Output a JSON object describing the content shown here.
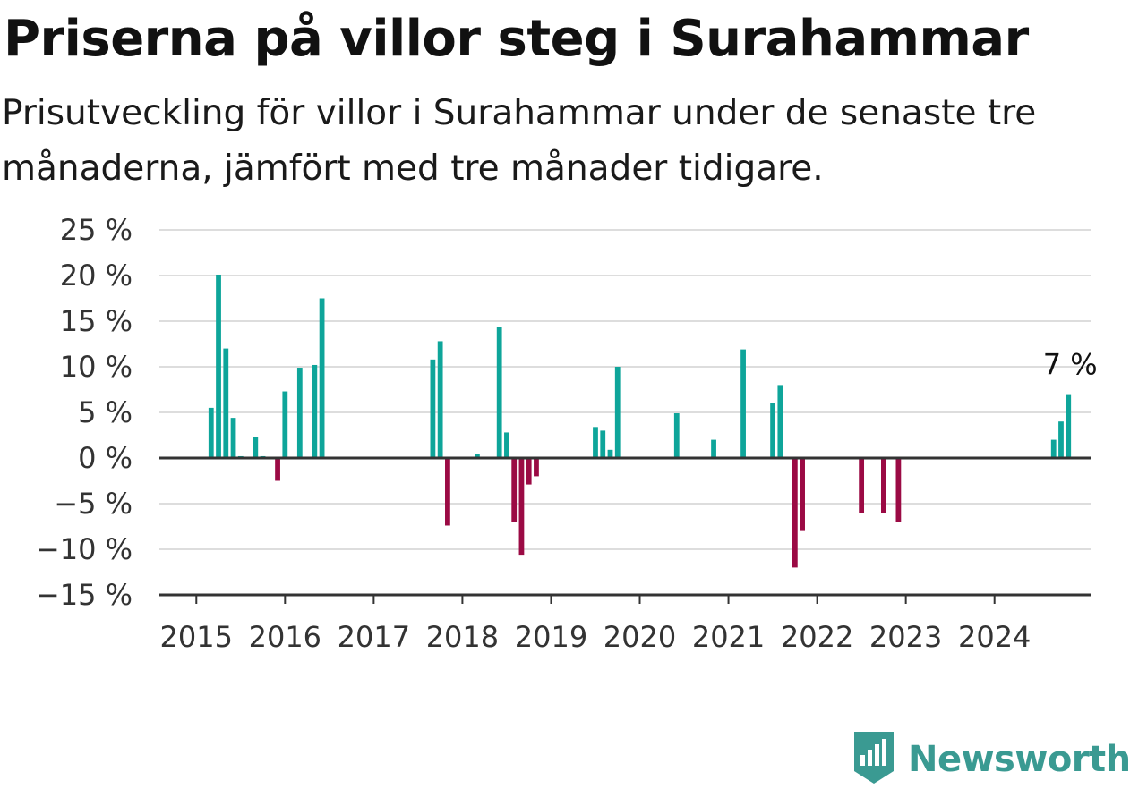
{
  "title": "Priserna på villor steg i Surahammar",
  "subtitle": "Prisutveckling för villor i Surahammar under de senaste tre månaderna, jämfört med tre månader tidigare.",
  "brand": {
    "name": "Newsworthy",
    "icon": "newsworthy-logo-icon",
    "color": "#3a9a92"
  },
  "chart_data": {
    "type": "bar",
    "xlabel": "",
    "ylabel": "",
    "ylim": [
      -15,
      25
    ],
    "yticks": [
      25,
      20,
      15,
      10,
      5,
      0,
      -5,
      -10,
      -15
    ],
    "ytick_labels": [
      "25 %",
      "20 %",
      "15 %",
      "10 %",
      "5 %",
      "0 %",
      "−5 %",
      "−10 %",
      "−15 %"
    ],
    "xticks": [
      "2015",
      "2016",
      "2017",
      "2018",
      "2019",
      "2020",
      "2021",
      "2022",
      "2023",
      "2024"
    ],
    "xlim": [
      "2014-08",
      "2025-02"
    ],
    "grid": true,
    "legend": "none",
    "colors": {
      "positive": "#0ea59a",
      "negative": "#9b0a44",
      "grid": "#dddddd",
      "axis": "#333333"
    },
    "annotation": {
      "text": "7 %",
      "x": "2024-11",
      "y": 7
    },
    "x": [
      "2015-03",
      "2015-04",
      "2015-05",
      "2015-06",
      "2015-07",
      "2015-09",
      "2015-10",
      "2015-12",
      "2016-01",
      "2016-03",
      "2016-05",
      "2016-06",
      "2017-09",
      "2017-10",
      "2017-11",
      "2018-03",
      "2018-06",
      "2018-07",
      "2018-08",
      "2018-09",
      "2018-10",
      "2018-11",
      "2019-07",
      "2019-08",
      "2019-09",
      "2019-10",
      "2020-06",
      "2020-11",
      "2021-03",
      "2021-07",
      "2021-08",
      "2021-10",
      "2021-11",
      "2022-07",
      "2022-10",
      "2022-12",
      "2024-09",
      "2024-10",
      "2024-11"
    ],
    "values": [
      5.5,
      20.1,
      12.0,
      4.4,
      0.2,
      2.3,
      0.2,
      -2.5,
      7.3,
      9.9,
      10.2,
      17.5,
      10.8,
      12.8,
      -7.4,
      0.4,
      14.4,
      2.8,
      -7.0,
      -10.6,
      -2.9,
      -2.0,
      3.4,
      3.0,
      0.9,
      10.0,
      4.9,
      2.0,
      11.9,
      6.0,
      8.0,
      -12.0,
      -8.0,
      -6.0,
      -6.0,
      -7.0,
      2.0,
      4.0,
      7.0
    ]
  }
}
